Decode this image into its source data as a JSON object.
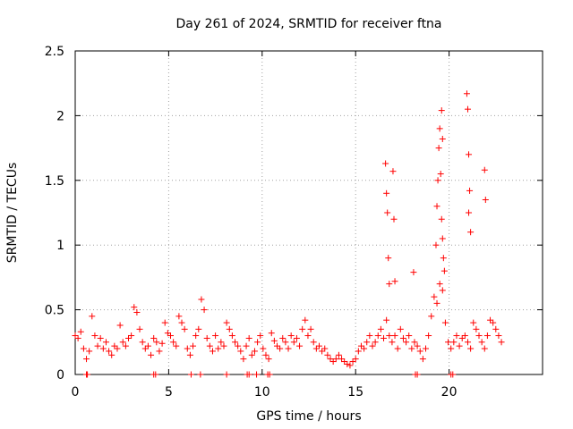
{
  "chart_data": {
    "type": "scatter",
    "title": "Day 261 of 2024, SRMTID for receiver ftna",
    "xlabel": "GPS time / hours",
    "ylabel": "SRMTID / TECUs",
    "xlim": [
      0,
      25
    ],
    "ylim": [
      0,
      2.5
    ],
    "xticks": [
      0,
      5,
      10,
      15,
      20
    ],
    "yticks": [
      0,
      0.5,
      1,
      1.5,
      2,
      2.5
    ],
    "grid": true,
    "marker": "+",
    "color": "#ff0000",
    "series": [
      {
        "name": "SRMTID",
        "x": [
          0.0,
          0.15,
          0.3,
          0.45,
          0.6,
          0.75,
          0.9,
          1.05,
          1.2,
          1.35,
          1.5,
          1.65,
          1.8,
          1.95,
          2.1,
          2.25,
          2.4,
          2.55,
          2.7,
          2.85,
          3.0,
          3.15,
          3.3,
          3.45,
          3.6,
          3.75,
          3.9,
          4.05,
          4.2,
          4.35,
          4.5,
          4.65,
          4.8,
          4.95,
          5.1,
          5.25,
          5.4,
          5.55,
          5.7,
          5.85,
          6.0,
          6.15,
          6.3,
          6.45,
          6.6,
          6.75,
          6.9,
          7.05,
          7.2,
          7.35,
          7.5,
          7.65,
          7.8,
          7.95,
          8.1,
          8.25,
          8.4,
          8.55,
          8.7,
          8.85,
          9.0,
          9.15,
          9.3,
          9.45,
          9.6,
          9.75,
          9.9,
          10.05,
          10.2,
          10.35,
          10.5,
          10.65,
          10.8,
          10.95,
          11.1,
          11.25,
          11.4,
          11.55,
          11.7,
          11.85,
          12.0,
          12.15,
          12.3,
          12.45,
          12.6,
          12.75,
          12.9,
          13.05,
          13.2,
          13.35,
          13.5,
          13.65,
          13.8,
          13.95,
          14.1,
          14.25,
          14.4,
          14.55,
          14.7,
          14.85,
          15.0,
          15.15,
          15.3,
          15.45,
          15.6,
          15.75,
          15.9,
          16.05,
          16.2,
          16.35,
          16.5,
          16.65,
          16.8,
          16.95,
          17.1,
          17.25,
          17.4,
          17.55,
          17.7,
          17.85,
          18.0,
          18.15,
          18.3,
          18.45,
          18.6,
          18.75,
          18.9,
          19.05,
          19.2,
          19.35,
          19.5,
          19.65,
          19.8,
          19.95,
          20.1,
          20.25,
          20.4,
          20.55,
          20.7,
          20.85,
          21.0,
          21.15,
          21.3,
          21.45,
          21.6,
          21.75,
          21.9,
          22.05,
          22.2,
          22.35,
          22.5,
          22.65,
          22.8,
          16.6,
          16.65,
          16.7,
          16.75,
          16.8,
          17.0,
          17.05,
          17.1,
          19.3,
          19.35,
          19.4,
          19.45,
          19.5,
          19.55,
          19.6,
          19.65,
          19.7,
          19.75,
          19.6,
          19.65,
          20.95,
          21.0,
          21.05,
          21.1,
          21.05,
          21.15,
          21.9,
          21.95,
          18.1,
          0.6,
          0.65,
          4.2,
          4.3,
          6.2,
          6.7,
          8.1,
          9.2,
          9.3,
          9.7,
          10.3,
          10.4,
          18.2,
          18.3,
          20.1,
          20.2
        ],
        "y": [
          0.3,
          0.28,
          0.33,
          0.2,
          0.12,
          0.18,
          0.45,
          0.3,
          0.22,
          0.28,
          0.2,
          0.25,
          0.18,
          0.15,
          0.22,
          0.2,
          0.38,
          0.25,
          0.22,
          0.28,
          0.3,
          0.52,
          0.48,
          0.35,
          0.25,
          0.2,
          0.22,
          0.15,
          0.28,
          0.25,
          0.18,
          0.24,
          0.4,
          0.32,
          0.3,
          0.25,
          0.22,
          0.45,
          0.4,
          0.35,
          0.2,
          0.15,
          0.22,
          0.3,
          0.35,
          0.58,
          0.5,
          0.28,
          0.22,
          0.18,
          0.3,
          0.2,
          0.25,
          0.22,
          0.4,
          0.35,
          0.3,
          0.25,
          0.22,
          0.18,
          0.12,
          0.22,
          0.28,
          0.15,
          0.18,
          0.25,
          0.3,
          0.2,
          0.15,
          0.12,
          0.32,
          0.26,
          0.22,
          0.2,
          0.28,
          0.25,
          0.2,
          0.3,
          0.25,
          0.28,
          0.22,
          0.35,
          0.42,
          0.3,
          0.35,
          0.25,
          0.2,
          0.22,
          0.18,
          0.2,
          0.15,
          0.12,
          0.1,
          0.12,
          0.15,
          0.12,
          0.1,
          0.08,
          0.07,
          0.1,
          0.12,
          0.18,
          0.22,
          0.2,
          0.25,
          0.3,
          0.22,
          0.25,
          0.3,
          0.35,
          0.28,
          0.42,
          0.3,
          0.25,
          0.3,
          0.2,
          0.35,
          0.28,
          0.25,
          0.3,
          0.2,
          0.25,
          0.22,
          0.18,
          0.12,
          0.2,
          0.3,
          0.45,
          0.6,
          0.55,
          0.7,
          0.65,
          0.4,
          0.25,
          0.2,
          0.25,
          0.3,
          0.22,
          0.28,
          0.3,
          0.25,
          0.2,
          0.4,
          0.35,
          0.3,
          0.25,
          0.2,
          0.3,
          0.42,
          0.4,
          0.35,
          0.3,
          0.25,
          1.63,
          1.4,
          1.25,
          0.9,
          0.7,
          1.57,
          1.2,
          0.72,
          1.0,
          1.3,
          1.5,
          1.75,
          1.9,
          1.55,
          1.2,
          1.05,
          0.9,
          0.8,
          2.04,
          1.82,
          2.17,
          2.05,
          1.7,
          1.42,
          1.25,
          1.1,
          1.58,
          1.35,
          0.79,
          0.0,
          0.0,
          0.0,
          0.0,
          0.0,
          0.0,
          0.0,
          0.0,
          0.0,
          0.0,
          0.0,
          0.0,
          0.0,
          0.0,
          0.0,
          0.0
        ]
      }
    ]
  }
}
